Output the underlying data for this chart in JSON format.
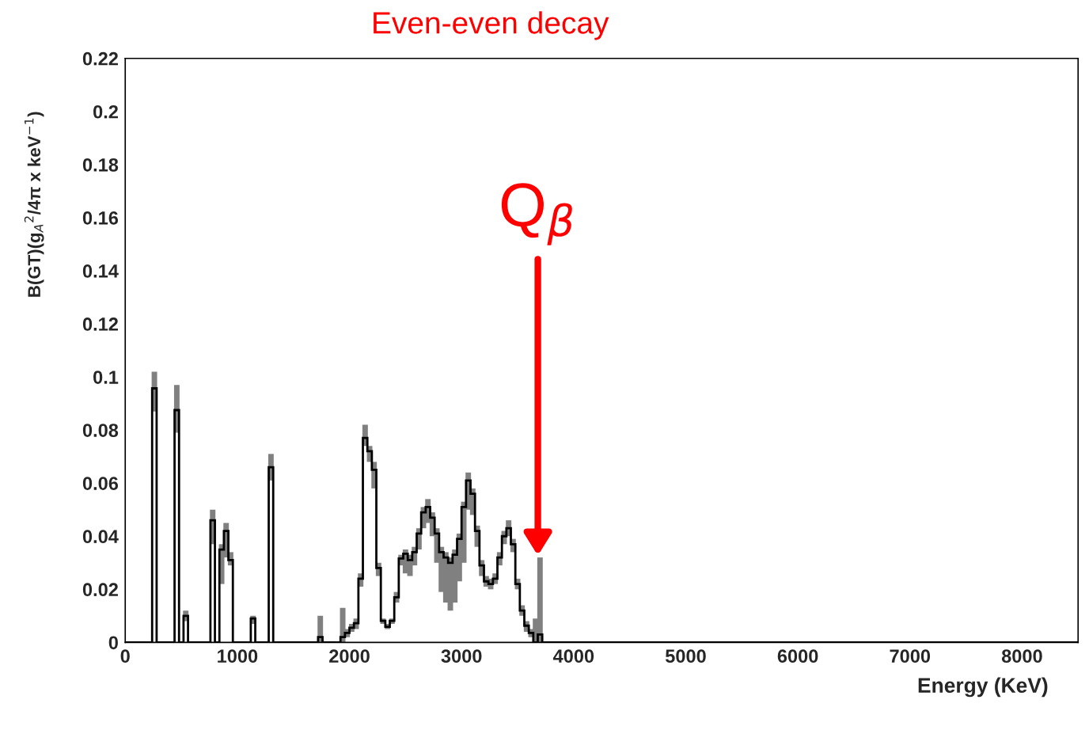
{
  "chart_data": {
    "type": "histogram",
    "title": "Even-even decay",
    "xlabel": "Energy (KeV)",
    "ylabel": "B(GT)(g$_{A}$$^{2}$/4π x keV$^{−1}$)",
    "bins": [
      0,
      240,
      280,
      440,
      480,
      520,
      560,
      760,
      800,
      840,
      880,
      920,
      960,
      1120,
      1160,
      1280,
      1320,
      1720,
      1760,
      1920,
      1960,
      2000,
      2040,
      2080,
      2120,
      2160,
      2200,
      2240,
      2280,
      2320,
      2360,
      2400,
      2440,
      2480,
      2520,
      2560,
      2600,
      2640,
      2680,
      2720,
      2760,
      2800,
      2840,
      2880,
      2920,
      2960,
      3000,
      3040,
      3080,
      3120,
      3160,
      3200,
      3240,
      3280,
      3320,
      3360,
      3400,
      3440,
      3480,
      3520,
      3560,
      3600,
      3640,
      3680,
      3720,
      8500
    ],
    "values": [
      0,
      0.0957,
      0,
      0.0875,
      0,
      0.01,
      0,
      0.046,
      0,
      0.035,
      0.042,
      0.031,
      0,
      0.009,
      0,
      0.066,
      0,
      0.002,
      0,
      0.002,
      0.0036,
      0.0055,
      0.0072,
      0.024,
      0.077,
      0.072,
      0.065,
      0.028,
      0.0081,
      0.0059,
      0.0081,
      0.017,
      0.0316,
      0.0334,
      0.031,
      0.034,
      0.041,
      0.049,
      0.051,
      0.047,
      0.041,
      0.034,
      0.032,
      0.03,
      0.033,
      0.039,
      0.051,
      0.061,
      0.056,
      0.042,
      0.029,
      0.023,
      0.022,
      0.024,
      0.032,
      0.04,
      0.043,
      0.037,
      0.022,
      0.012,
      0.0063,
      0.0036,
      0,
      0.003,
      0
    ],
    "errors": [
      null,
      [
        0.087,
        0.102
      ],
      null,
      [
        0.079,
        0.097
      ],
      null,
      [
        0.008,
        0.012
      ],
      null,
      [
        0.037,
        0.05
      ],
      null,
      [
        0.022,
        0.037
      ],
      [
        0.032,
        0.045
      ],
      [
        0.029,
        0.034
      ],
      null,
      [
        0.007,
        0.01
      ],
      null,
      [
        0.061,
        0.071
      ],
      null,
      [
        0,
        0.01
      ],
      null,
      [
        0,
        0.013
      ],
      [
        0.002,
        0.005
      ],
      [
        0.004,
        0.007
      ],
      [
        0.005,
        0.009
      ],
      [
        0.021,
        0.026
      ],
      [
        0.074,
        0.082
      ],
      [
        0.068,
        0.074
      ],
      [
        0.058,
        0.068
      ],
      [
        0.025,
        0.03
      ],
      [
        0.007,
        0.009
      ],
      [
        0.005,
        0.007
      ],
      [
        0.007,
        0.009
      ],
      [
        0.015,
        0.019
      ],
      [
        0.029,
        0.033
      ],
      [
        0.026,
        0.035
      ],
      [
        0.025,
        0.033
      ],
      [
        0.029,
        0.036
      ],
      [
        0.035,
        0.043
      ],
      [
        0.043,
        0.051
      ],
      [
        0.045,
        0.054
      ],
      [
        0.04,
        0.049
      ],
      [
        0.03,
        0.043
      ],
      [
        0.019,
        0.036
      ],
      [
        0.015,
        0.034
      ],
      [
        0.012,
        0.032
      ],
      [
        0.015,
        0.035
      ],
      [
        0.023,
        0.041
      ],
      [
        0.03,
        0.053
      ],
      [
        0.05,
        0.064
      ],
      [
        0.048,
        0.058
      ],
      [
        0.036,
        0.044
      ],
      [
        0.025,
        0.031
      ],
      [
        0.021,
        0.025
      ],
      [
        0.02,
        0.024
      ],
      [
        0.022,
        0.026
      ],
      [
        0.029,
        0.034
      ],
      [
        0.037,
        0.042
      ],
      [
        0.04,
        0.046
      ],
      [
        0.034,
        0.039
      ],
      [
        0.02,
        0.024
      ],
      [
        0.01,
        0.014
      ],
      [
        0.004,
        0.008
      ],
      [
        0.002,
        0.005
      ],
      [
        0,
        0.009
      ],
      [
        0,
        0.032
      ],
      null
    ],
    "color": "#000000",
    "xlim": [
      0,
      8500
    ],
    "xticks": [
      0,
      1000,
      2000,
      3000,
      4000,
      5000,
      6000,
      7000,
      8000
    ],
    "ylim": [
      0,
      0.22
    ],
    "yticks": [
      0,
      0.02,
      0.04,
      0.06,
      0.08,
      0.1,
      0.12,
      0.14,
      0.16,
      0.18,
      0.2,
      0.22
    ],
    "annotations": [
      "Q$_{β}$"
    ]
  }
}
